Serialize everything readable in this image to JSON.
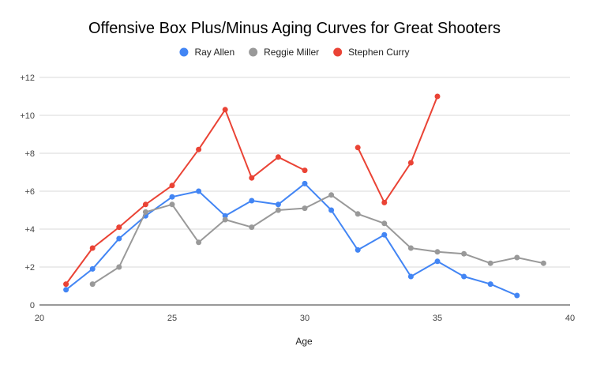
{
  "chart_data": {
    "type": "line",
    "title": "Offensive Box Plus/Minus Aging Curves for Great Shooters",
    "xlabel": "Age",
    "ylabel": "",
    "xlim": [
      20,
      40
    ],
    "ylim": [
      0,
      12
    ],
    "x_ticks": [
      {
        "value": 20,
        "label": "20"
      },
      {
        "value": 25,
        "label": "25"
      },
      {
        "value": 30,
        "label": "30"
      },
      {
        "value": 35,
        "label": "35"
      },
      {
        "value": 40,
        "label": "40"
      }
    ],
    "y_ticks": [
      {
        "value": 0,
        "label": "0"
      },
      {
        "value": 2,
        "label": "+2"
      },
      {
        "value": 4,
        "label": "+4"
      },
      {
        "value": 6,
        "label": "+6"
      },
      {
        "value": 8,
        "label": "+8"
      },
      {
        "value": 10,
        "label": "+10"
      },
      {
        "value": 12,
        "label": "+12"
      }
    ],
    "grid": true,
    "legend_position": "top-center",
    "series": [
      {
        "name": "Ray Allen",
        "color": "#4285F4",
        "points": [
          [
            21,
            0.8
          ],
          [
            22,
            1.9
          ],
          [
            23,
            3.5
          ],
          [
            24,
            4.7
          ],
          [
            25,
            5.7
          ],
          [
            26,
            6.0
          ],
          [
            27,
            4.7
          ],
          [
            28,
            5.5
          ],
          [
            29,
            5.3
          ],
          [
            30,
            6.4
          ],
          [
            31,
            5.0
          ],
          [
            32,
            2.9
          ],
          [
            33,
            3.7
          ],
          [
            34,
            1.5
          ],
          [
            35,
            2.3
          ],
          [
            36,
            1.5
          ],
          [
            37,
            1.1
          ],
          [
            38,
            0.5
          ]
        ]
      },
      {
        "name": "Reggie Miller",
        "color": "#999999",
        "points": [
          [
            22,
            1.1
          ],
          [
            23,
            2.0
          ],
          [
            24,
            4.9
          ],
          [
            25,
            5.3
          ],
          [
            26,
            3.3
          ],
          [
            27,
            4.5
          ],
          [
            28,
            4.1
          ],
          [
            29,
            5.0
          ],
          [
            30,
            5.1
          ],
          [
            31,
            5.8
          ],
          [
            32,
            4.8
          ],
          [
            33,
            4.3
          ],
          [
            34,
            3.0
          ],
          [
            35,
            2.8
          ],
          [
            36,
            2.7
          ],
          [
            37,
            2.2
          ],
          [
            38,
            2.5
          ],
          [
            39,
            2.2
          ]
        ]
      },
      {
        "name": "Stephen Curry",
        "color": "#EA4335",
        "points": [
          [
            21,
            1.1
          ],
          [
            22,
            3.0
          ],
          [
            23,
            4.1
          ],
          [
            24,
            5.3
          ],
          [
            25,
            6.3
          ],
          [
            26,
            8.2
          ],
          [
            27,
            10.3
          ],
          [
            28,
            6.7
          ],
          [
            29,
            7.8
          ],
          [
            30,
            7.1
          ],
          [
            31,
            null
          ],
          [
            32,
            8.3
          ],
          [
            33,
            5.4
          ],
          [
            34,
            7.5
          ],
          [
            35,
            11.0
          ]
        ]
      }
    ]
  }
}
